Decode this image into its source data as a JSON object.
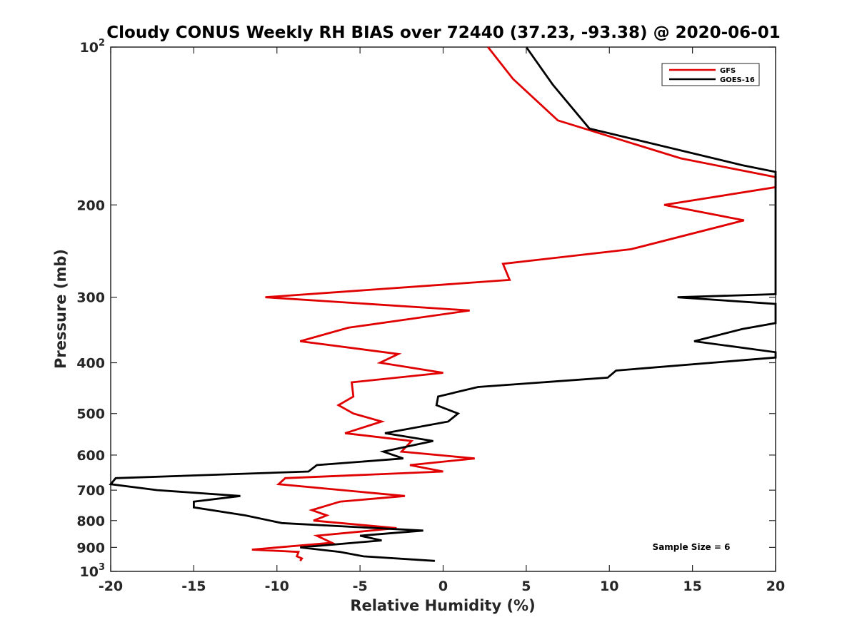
{
  "chart_data": {
    "type": "line",
    "title": "Cloudy CONUS Weekly RH BIAS over 72440 (37.23, -93.38) @ 2020-06-01",
    "xlabel": "Relative Humidity (%)",
    "ylabel": "Pressure (mb)",
    "xlim": [
      -20,
      20
    ],
    "ylim": [
      100,
      1000
    ],
    "y_scale": "log",
    "y_reversed": true,
    "grid": false,
    "legend_position": "top-right",
    "x_ticks": [
      "-20",
      "-15",
      "-10",
      "-5",
      "0",
      "5",
      "10",
      "15",
      "20"
    ],
    "y_ticks": [
      {
        "value": 100,
        "base": "10",
        "exp": "2"
      },
      {
        "value": 200,
        "label": "200"
      },
      {
        "value": 300,
        "label": "300"
      },
      {
        "value": 400,
        "label": "400"
      },
      {
        "value": 500,
        "label": "500"
      },
      {
        "value": 600,
        "label": "600"
      },
      {
        "value": 700,
        "label": "700"
      },
      {
        "value": 800,
        "label": "800"
      },
      {
        "value": 900,
        "label": "900"
      },
      {
        "value": 1000,
        "base": "10",
        "exp": "3"
      }
    ],
    "series": [
      {
        "name": "GFS",
        "color": "#e00000",
        "points": [
          [
            2.7,
            100
          ],
          [
            4.2,
            115
          ],
          [
            6.9,
            138
          ],
          [
            14.3,
            163
          ],
          [
            20.0,
            177
          ],
          [
            20.0,
            185
          ],
          [
            13.3,
            200
          ],
          [
            18.1,
            214
          ],
          [
            11.3,
            243
          ],
          [
            3.6,
            259
          ],
          [
            4.0,
            278
          ],
          [
            -10.7,
            300
          ],
          [
            1.6,
            318
          ],
          [
            -5.7,
            343
          ],
          [
            -8.6,
            364
          ],
          [
            -2.7,
            385
          ],
          [
            -3.8,
            400
          ],
          [
            0.0,
            418
          ],
          [
            -5.5,
            436
          ],
          [
            -5.4,
            464
          ],
          [
            -6.3,
            482
          ],
          [
            -5.4,
            500
          ],
          [
            -3.7,
            518
          ],
          [
            -5.9,
            545
          ],
          [
            -1.9,
            564
          ],
          [
            -2.5,
            591
          ],
          [
            1.9,
            609
          ],
          [
            -2.0,
            627
          ],
          [
            0.0,
            645
          ],
          [
            -9.5,
            664
          ],
          [
            -9.9,
            682
          ],
          [
            -2.3,
            718
          ],
          [
            -6.2,
            736
          ],
          [
            -7.9,
            764
          ],
          [
            -7.0,
            782
          ],
          [
            -7.8,
            800
          ],
          [
            -2.8,
            827
          ],
          [
            -7.6,
            855
          ],
          [
            -6.7,
            882
          ],
          [
            -11.5,
            909
          ],
          [
            -8.7,
            918
          ],
          [
            -8.8,
            936
          ],
          [
            -8.5,
            945
          ],
          [
            -8.6,
            955
          ]
        ]
      },
      {
        "name": "GOES-16",
        "color": "#000000",
        "points": [
          [
            5.0,
            100
          ],
          [
            6.6,
            118
          ],
          [
            8.8,
            143
          ],
          [
            18.0,
            168
          ],
          [
            20.0,
            173
          ],
          [
            20.0,
            296
          ],
          [
            14.1,
            300
          ],
          [
            20.0,
            309
          ],
          [
            20.0,
            336
          ],
          [
            18.0,
            345
          ],
          [
            15.1,
            364
          ],
          [
            20.0,
            382
          ],
          [
            20.0,
            391
          ],
          [
            10.4,
            414
          ],
          [
            9.9,
            427
          ],
          [
            2.1,
            445
          ],
          [
            -0.3,
            464
          ],
          [
            -0.4,
            482
          ],
          [
            0.9,
            500
          ],
          [
            0.3,
            518
          ],
          [
            -3.5,
            545
          ],
          [
            -0.6,
            564
          ],
          [
            -3.6,
            591
          ],
          [
            -2.4,
            609
          ],
          [
            -7.6,
            627
          ],
          [
            -8.1,
            645
          ],
          [
            -19.7,
            664
          ],
          [
            -20.0,
            682
          ],
          [
            -17.2,
            700
          ],
          [
            -12.2,
            718
          ],
          [
            -15.0,
            736
          ],
          [
            -15.0,
            755
          ],
          [
            -11.9,
            782
          ],
          [
            -9.7,
            809
          ],
          [
            -1.2,
            836
          ],
          [
            -5.0,
            855
          ],
          [
            -3.7,
            873
          ],
          [
            -8.6,
            900
          ],
          [
            -6.2,
            918
          ],
          [
            -4.8,
            936
          ],
          [
            -0.5,
            955
          ]
        ]
      }
    ],
    "annotations": [
      "Sample Size = 6"
    ]
  }
}
